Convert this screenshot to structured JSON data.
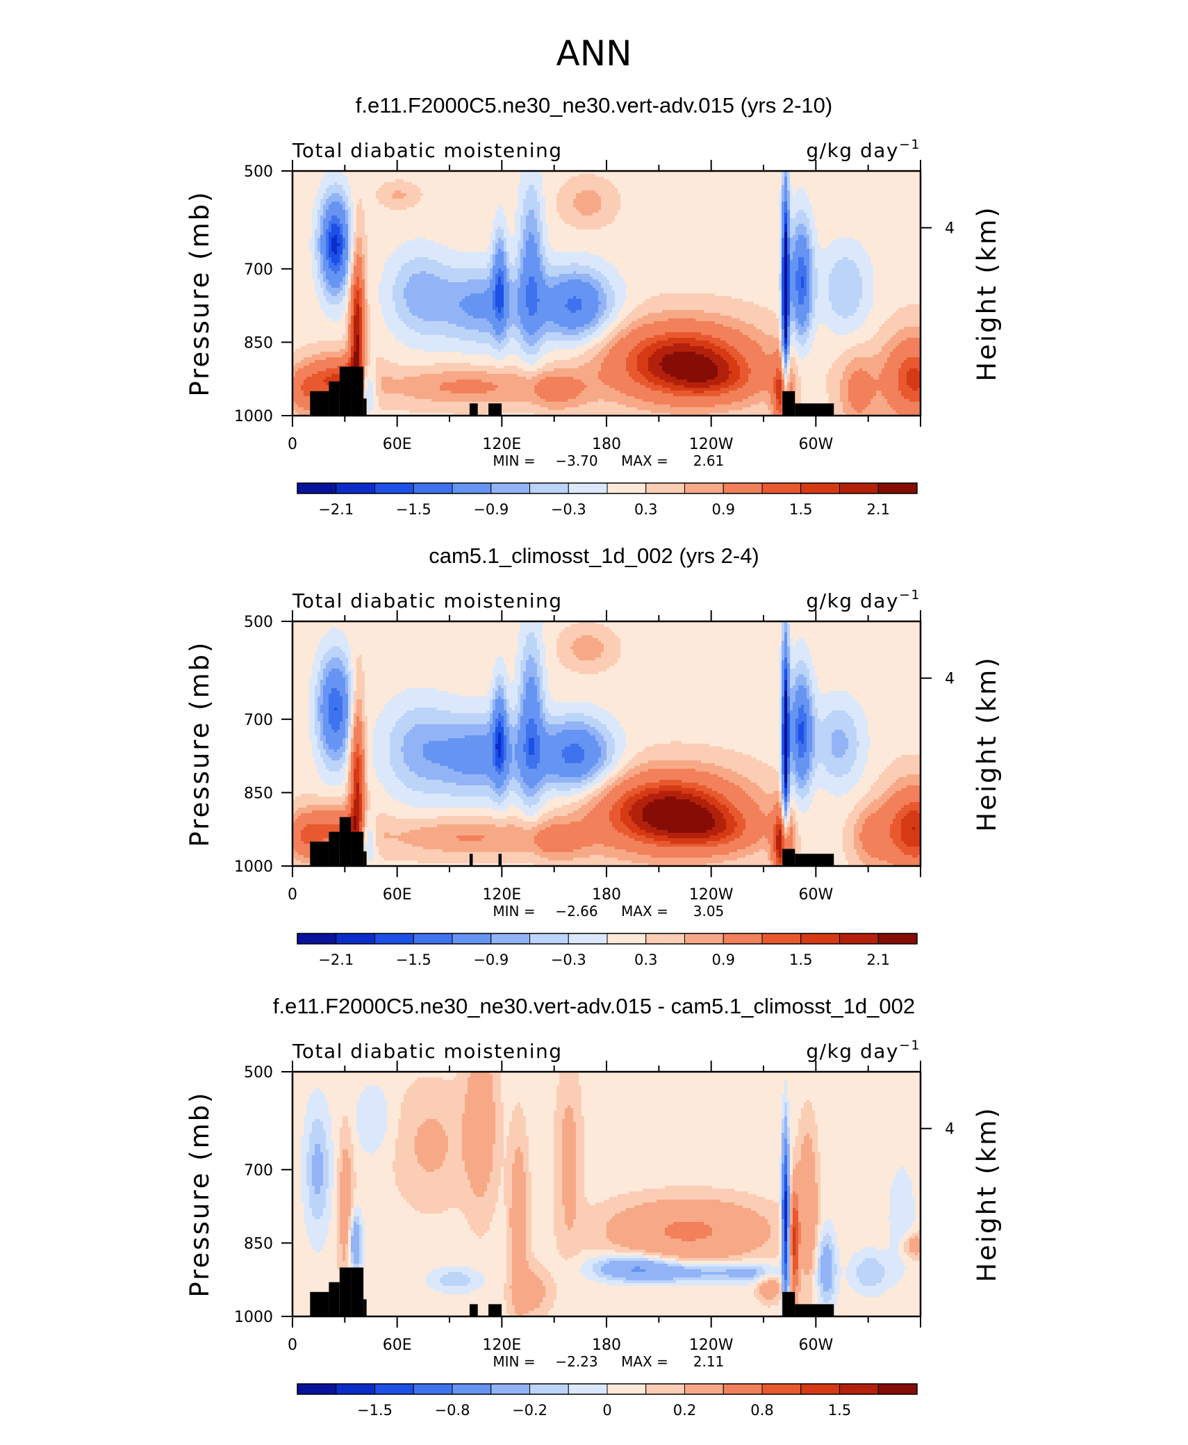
{
  "figure": {
    "title": "ANN"
  },
  "colors": {
    "diverging": [
      "#08139c",
      "#0a2dc9",
      "#1c50e6",
      "#3f72ee",
      "#6694f2",
      "#92b4f6",
      "#bdd4f9",
      "#dbe8fb",
      "#fde9da",
      "#fbcdb5",
      "#f7a987",
      "#f2805a",
      "#e85930",
      "#d63a14",
      "#b3200b",
      "#850d06"
    ],
    "topography": "#000000",
    "axis": "#000000"
  },
  "chart_data": [
    {
      "type": "heatmap",
      "title": "f.e11.F2000C5.ne30_ne30.vert-adv.015 (yrs 2-10)",
      "left_label": "Total diabatic moistening",
      "units_base": "g/kg day",
      "units_sup": "−1",
      "ylabel": "Pressure (mb)",
      "ylabel_right": "Height (km)",
      "x_ticks": [
        "0",
        "60E",
        "120E",
        "180",
        "120W",
        "60W"
      ],
      "y_ticks": [
        "500",
        "700",
        "850",
        "1000"
      ],
      "y_right_ticks": [
        "4"
      ],
      "min_label": "MIN =",
      "min": "−3.70",
      "max_label": "MAX =",
      "max": "2.61",
      "colorbar_labels": [
        "−2.1",
        "−1.5",
        "−0.9",
        "−0.3",
        "0.3",
        "0.9",
        "1.5",
        "2.1"
      ]
    },
    {
      "type": "heatmap",
      "title": "cam5.1_climosst_1d_002 (yrs 2-4)",
      "left_label": "Total diabatic moistening",
      "units_base": "g/kg day",
      "units_sup": "−1",
      "ylabel": "Pressure (mb)",
      "ylabel_right": "Height (km)",
      "x_ticks": [
        "0",
        "60E",
        "120E",
        "180",
        "120W",
        "60W"
      ],
      "y_ticks": [
        "500",
        "700",
        "850",
        "1000"
      ],
      "y_right_ticks": [
        "4"
      ],
      "min_label": "MIN =",
      "min": "−2.66",
      "max_label": "MAX =",
      "max": "3.05",
      "colorbar_labels": [
        "−2.1",
        "−1.5",
        "−0.9",
        "−0.3",
        "0.3",
        "0.9",
        "1.5",
        "2.1"
      ]
    },
    {
      "type": "heatmap",
      "title": "f.e11.F2000C5.ne30_ne30.vert-adv.015 - cam5.1_climosst_1d_002",
      "left_label": "Total diabatic moistening",
      "units_base": "g/kg day",
      "units_sup": "−1",
      "ylabel": "Pressure (mb)",
      "ylabel_right": "Height (km)",
      "x_ticks": [
        "0",
        "60E",
        "120E",
        "180",
        "120W",
        "60W"
      ],
      "y_ticks": [
        "500",
        "700",
        "850",
        "1000"
      ],
      "y_right_ticks": [
        "4"
      ],
      "min_label": "MIN =",
      "min": "−2.23",
      "max_label": "MAX =",
      "max": "2.11",
      "colorbar_labels": [
        "−1.5",
        "−0.8",
        "−0.2",
        "0",
        "0.2",
        "0.8",
        "1.5"
      ]
    }
  ]
}
